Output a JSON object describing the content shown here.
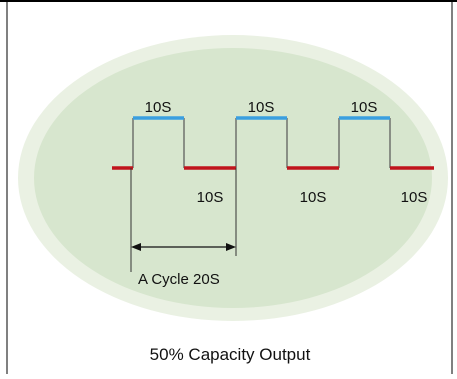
{
  "diagram": {
    "high_labels": [
      "10S",
      "10S",
      "10S"
    ],
    "low_labels": [
      "10S",
      "10S",
      "10S"
    ],
    "cycle_label": "A Cycle 20S",
    "caption": "50% Capacity Output"
  },
  "colors": {
    "ellipse_fill": "#d7e6ce",
    "ellipse_outer": "#eaf1e3",
    "high_segment": "#3a9fe0",
    "low_segment": "#c0141c",
    "waveform_line": "#555555",
    "border": "#000000"
  }
}
